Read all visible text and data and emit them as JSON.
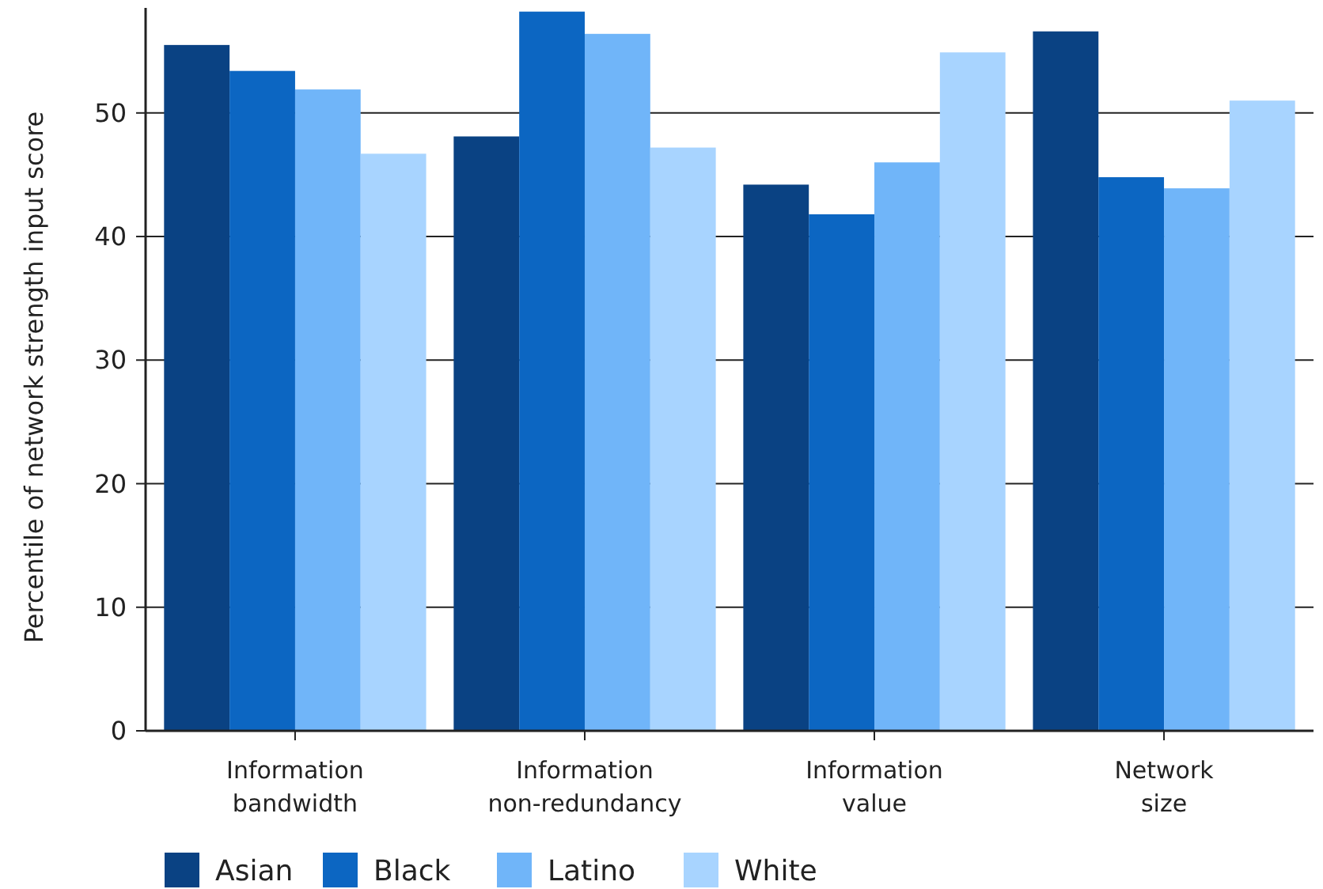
{
  "chart_data": {
    "type": "bar",
    "ylabel": "Percentile of network strength input score",
    "categories": [
      "Information bandwidth",
      "Information non-redundancy",
      "Information value",
      "Network size"
    ],
    "series": [
      {
        "name": "Asian",
        "color": "#0a4283",
        "values": [
          55.5,
          48.1,
          44.2,
          56.6
        ]
      },
      {
        "name": "Black",
        "color": "#0c66c2",
        "values": [
          53.4,
          58.2,
          41.8,
          44.8
        ]
      },
      {
        "name": "Latino",
        "color": "#70b5f9",
        "values": [
          51.9,
          56.4,
          46.0,
          43.9
        ]
      },
      {
        "name": "White",
        "color": "#a8d4ff",
        "values": [
          46.7,
          47.2,
          54.9,
          51.0
        ]
      }
    ],
    "ylim": [
      0,
      58.5
    ],
    "yticks": [
      0,
      10,
      20,
      30,
      40,
      50
    ],
    "grid": "y",
    "legend": "bottom left"
  }
}
